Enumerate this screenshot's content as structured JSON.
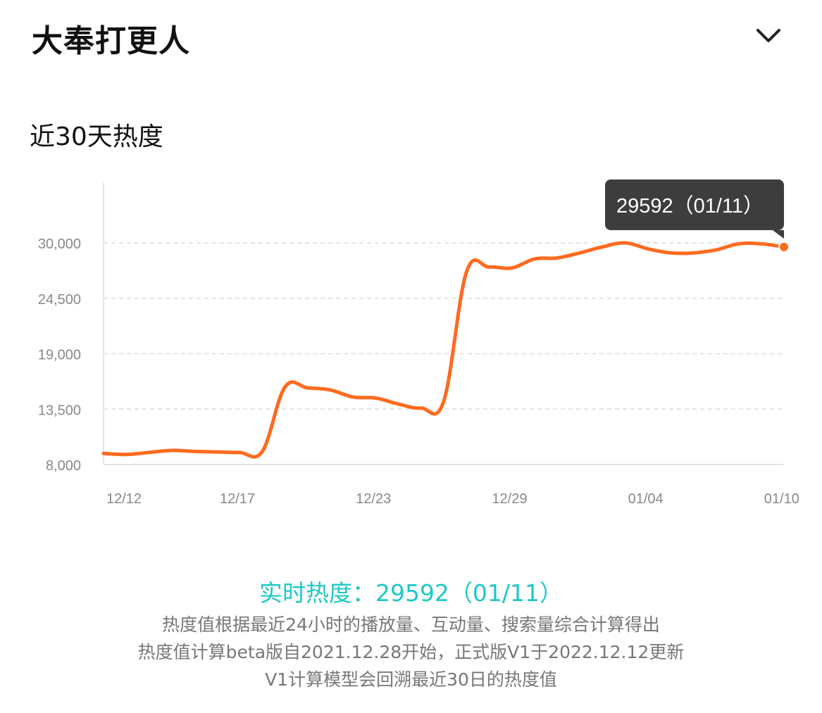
{
  "header": {
    "title": "大奉打更人"
  },
  "icons": {
    "toggle": "chevron-down-icon"
  },
  "section": {
    "title": "近30天热度"
  },
  "tooltip": {
    "text": "29592（01/11）"
  },
  "footer": {
    "realtime": "实时热度：29592（01/11）",
    "notes": [
      "热度值根据最近24小时的播放量、互动量、搜索量综合计算得出",
      "热度值计算beta版自2021.12.28开始，正式版V1于2022.12.12更新",
      "V1计算模型会回溯最近30日的热度值"
    ]
  },
  "colors": {
    "line": "#ff6a1f",
    "accent": "#1ec8c5",
    "tooltip_bg": "#3d3d3d",
    "grid": "#e4e4e4",
    "tick": "#888888"
  },
  "chart_data": {
    "type": "line",
    "title": "",
    "xlabel": "",
    "ylabel": "",
    "ylim": [
      8000,
      30000
    ],
    "yticks": [
      8000,
      13500,
      19000,
      24500,
      30000
    ],
    "ytick_labels": [
      "8,000",
      "13,500",
      "19,000",
      "24,500",
      "30,000"
    ],
    "xtick_labels": [
      "12/12",
      "12/17",
      "12/23",
      "12/29",
      "01/04",
      "01/10"
    ],
    "grid": "horizontal dashed",
    "legend": "none",
    "series": [
      {
        "x": [
          "12/12",
          "12/13",
          "12/14",
          "12/15",
          "12/16",
          "12/17",
          "12/18",
          "12/19",
          "12/20",
          "12/21",
          "12/22",
          "12/23",
          "12/24",
          "12/25",
          "12/26",
          "12/27",
          "12/28",
          "12/29",
          "12/30",
          "12/31",
          "01/01",
          "01/02",
          "01/03",
          "01/04",
          "01/05",
          "01/06",
          "01/07",
          "01/08",
          "01/09",
          "01/10",
          "01/11"
        ],
        "values": [
          9100,
          9000,
          9200,
          9400,
          9300,
          9250,
          9200,
          9300,
          15700,
          15600,
          15400,
          14700,
          14600,
          14000,
          13600,
          14300,
          27100,
          27600,
          27500,
          28400,
          28500,
          29000,
          29600,
          30000,
          29400,
          29000,
          29000,
          29300,
          29900,
          29900,
          29592
        ]
      }
    ],
    "highlight": {
      "x": "01/11",
      "value": 29592
    }
  }
}
